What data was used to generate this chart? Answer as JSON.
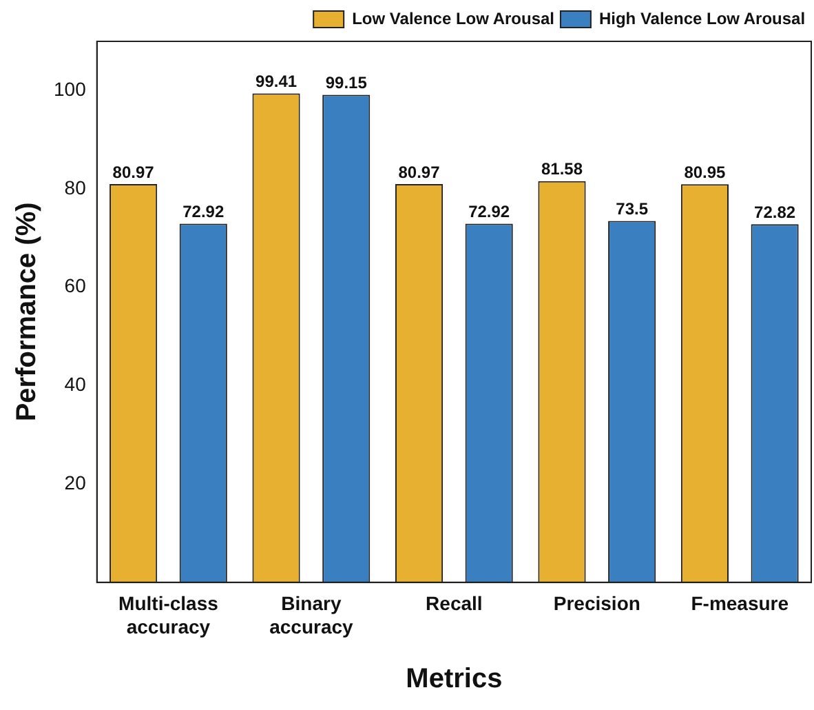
{
  "chart_data": {
    "type": "bar",
    "xlabel": "Metrics",
    "ylabel": "Performance (%)",
    "categories": [
      "Multi-class accuracy",
      "Binary accuracy",
      "Recall",
      "Precision",
      "F-measure"
    ],
    "series": [
      {
        "name": "Low Valence Low Arousal",
        "color": "#e8b030",
        "values": [
          80.97,
          99.41,
          80.97,
          81.58,
          80.95
        ]
      },
      {
        "name": "High Valence Low Arousal",
        "color": "#3a7fc0",
        "values": [
          72.92,
          99.15,
          72.92,
          73.5,
          72.82
        ]
      }
    ],
    "ylim": [
      0,
      110
    ],
    "yticks": [
      20,
      40,
      60,
      80,
      100
    ],
    "grid": false,
    "legend": "top right",
    "data_labels": true
  }
}
